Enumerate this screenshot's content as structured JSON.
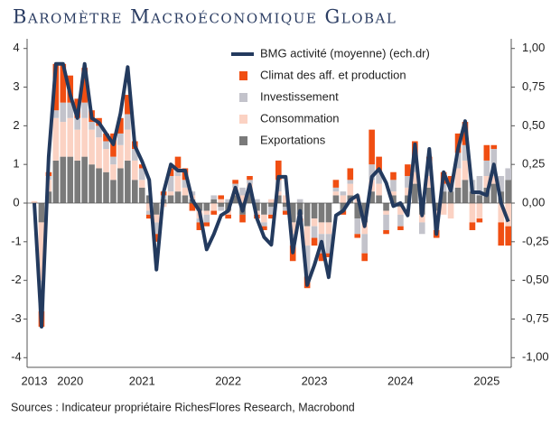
{
  "chart_data": {
    "type": "bar",
    "title": "Baromètre Macroéconomique Global",
    "source": "Sources : Indicateur propriétaire RichesFlores Research, Macrobond",
    "categories": [
      "2013",
      null,
      null,
      null,
      null,
      "2020",
      null,
      null,
      null,
      null,
      null,
      null,
      null,
      null,
      null,
      "2021",
      null,
      null,
      null,
      null,
      null,
      null,
      null,
      null,
      null,
      null,
      null,
      "2022",
      null,
      null,
      null,
      null,
      null,
      null,
      null,
      null,
      null,
      null,
      null,
      "2023",
      null,
      null,
      null,
      null,
      null,
      null,
      null,
      null,
      null,
      null,
      null,
      "2024",
      null,
      null,
      null,
      null,
      null,
      null,
      null,
      null,
      null,
      null,
      null,
      "2025",
      null,
      null,
      null
    ],
    "ylim": [
      -4.25,
      4.25
    ],
    "yticks": [
      4,
      3,
      2,
      1,
      0,
      -1,
      -2,
      -3,
      -4
    ],
    "y2lim": [
      -1.0625,
      1.0625
    ],
    "y2ticks": [
      {
        "value": 1,
        "label": "1,00"
      },
      {
        "value": 0.75,
        "label": "0,75"
      },
      {
        "value": 0.5,
        "label": "0,50"
      },
      {
        "value": 0.25,
        "label": "0,25"
      },
      {
        "value": 0,
        "label": "0,00"
      },
      {
        "value": -0.25,
        "label": "-0,25"
      },
      {
        "value": -0.5,
        "label": "-0,50"
      },
      {
        "value": -0.75,
        "label": "-0,75"
      },
      {
        "value": -1,
        "label": "-1,00"
      }
    ],
    "series": [
      {
        "name": "BMG activité (moyenne) (ech.dr)",
        "type": "line",
        "axis": "y2",
        "color": "#233a5e",
        "values": [
          0.0,
          -0.8,
          0.3,
          0.9,
          0.9,
          0.7,
          0.55,
          0.9,
          0.55,
          0.52,
          0.45,
          0.38,
          0.58,
          0.88,
          0.37,
          0.27,
          0.15,
          -0.43,
          0.07,
          0.25,
          0.21,
          0.21,
          0.02,
          -0.05,
          -0.3,
          -0.2,
          -0.08,
          -0.05,
          0.1,
          -0.05,
          0.12,
          -0.1,
          -0.22,
          -0.27,
          0.17,
          0.17,
          -0.32,
          -0.05,
          -0.53,
          -0.4,
          -0.25,
          -0.48,
          -0.08,
          -0.05,
          0.02,
          0.05,
          -0.15,
          0.17,
          0.22,
          0.13,
          -0.02,
          0.0,
          -0.08,
          0.38,
          -0.08,
          0.35,
          -0.2,
          0.2,
          0.08,
          0.35,
          0.53,
          0.07,
          0.07,
          0.05,
          0.25,
          0.0,
          -0.12
        ]
      },
      {
        "name": "Climat des aff. et production",
        "color": "#f04e12",
        "values": [
          0,
          -0.4,
          0.1,
          1.2,
          1.0,
          0.7,
          0.5,
          0.9,
          0.3,
          0.2,
          0.2,
          0.6,
          0.4,
          0.5,
          0.2,
          0.1,
          -0.1,
          -0.2,
          0.1,
          0.2,
          0.3,
          0.3,
          -0.2,
          -0.2,
          -0.1,
          -0.1,
          0.1,
          -0.1,
          0.1,
          -0.2,
          0.1,
          -0.1,
          -0.1,
          -0.1,
          0.5,
          -0.1,
          -0.4,
          -0.1,
          -0.3,
          -0.2,
          -0.2,
          -0.1,
          0.2,
          -0.1,
          0.3,
          -0.1,
          -0.2,
          0.9,
          0.4,
          -0.1,
          0.2,
          -0.1,
          0.3,
          0.4,
          0.1,
          0.2,
          -0.2,
          0.3,
          0.2,
          0.5,
          0.6,
          -0.2,
          -0.1,
          0.4,
          0.1,
          -0.6,
          -0.5
        ]
      },
      {
        "name": "Investissement",
        "color": "#c3c3cb",
        "values": [
          0,
          -0.8,
          0.1,
          0.2,
          0.5,
          0.4,
          0.3,
          0.4,
          0.2,
          0.3,
          0.2,
          0.2,
          0.3,
          0.4,
          0.3,
          0.3,
          -0.1,
          -0.3,
          0.1,
          0.4,
          0.2,
          0.2,
          0.1,
          -0.1,
          -0.2,
          0.1,
          -0.1,
          0.1,
          0.1,
          0.2,
          0.1,
          0.1,
          -0.1,
          -0.2,
          0.3,
          -0.1,
          -0.3,
          0.1,
          -0.8,
          -0.3,
          -0.5,
          -0.5,
          0.1,
          0.1,
          0.1,
          -0.4,
          -0.5,
          0.4,
          0.3,
          -0.4,
          0.3,
          -0.3,
          0.3,
          0.4,
          -0.3,
          0.3,
          -0.3,
          0.2,
          0.2,
          0.4,
          0.4,
          0.3,
          0.5,
          0.4,
          0.7,
          0.4,
          0.3
        ]
      },
      {
        "name": "Consommation",
        "color": "#fbd2c3",
        "values": [
          0.05,
          -1.5,
          0.3,
          1.1,
          0.9,
          1.0,
          0.8,
          1.0,
          0.9,
          0.8,
          0.6,
          0.4,
          0.6,
          0.8,
          0.5,
          0.2,
          -0.2,
          -0.2,
          -0.1,
          0.1,
          0.4,
          0.2,
          0.1,
          -0.2,
          -0.1,
          -0.2,
          0.1,
          -0.1,
          0.2,
          0.2,
          0.2,
          -0.1,
          -0.2,
          0.1,
          0.1,
          0.2,
          -0.3,
          -0.1,
          -0.5,
          -0.2,
          -0.3,
          -0.3,
          0.1,
          0.2,
          0.3,
          0.2,
          -0.3,
          0.3,
          0.3,
          -0.1,
          0.1,
          -0.2,
          0.2,
          0.3,
          -0.2,
          0.3,
          -0.2,
          -0.3,
          -0.4,
          0.5,
          0.5,
          -0.5,
          -0.4,
          0.3,
          0.2,
          -0.5,
          -0.6
        ]
      },
      {
        "name": "Exportations",
        "color": "#7a7a7a",
        "values": [
          0,
          -0.5,
          0.3,
          1.1,
          1.2,
          1.2,
          1.1,
          1.2,
          1.0,
          0.9,
          0.8,
          0.6,
          0.9,
          1.1,
          0.6,
          0.4,
          0.2,
          -0.3,
          0.1,
          0.2,
          0.3,
          0.2,
          0.1,
          -0.2,
          -0.2,
          0.1,
          -0.1,
          -0.2,
          0.2,
          -0.3,
          0.3,
          -0.2,
          -0.3,
          -0.1,
          0.2,
          -0.1,
          -0.5,
          -0.3,
          -0.6,
          -0.4,
          -0.5,
          -0.5,
          0.2,
          -0.2,
          0.2,
          -0.4,
          -0.5,
          0.3,
          0.2,
          -0.2,
          0.2,
          -0.1,
          0.2,
          0.5,
          -0.3,
          0.4,
          -0.2,
          0.3,
          0.3,
          0.4,
          0.6,
          0.3,
          0.2,
          0.4,
          0.5,
          0.3,
          0.6
        ]
      }
    ]
  }
}
